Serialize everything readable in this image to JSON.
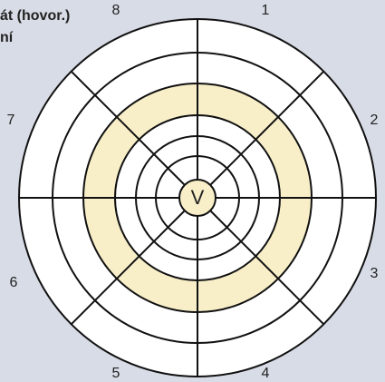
{
  "caption": [
    "át (hovor.)",
    "ní"
  ],
  "center": "V",
  "sectors": [
    "1",
    "2",
    "3",
    "4",
    "5",
    "6",
    "7",
    "8"
  ]
}
